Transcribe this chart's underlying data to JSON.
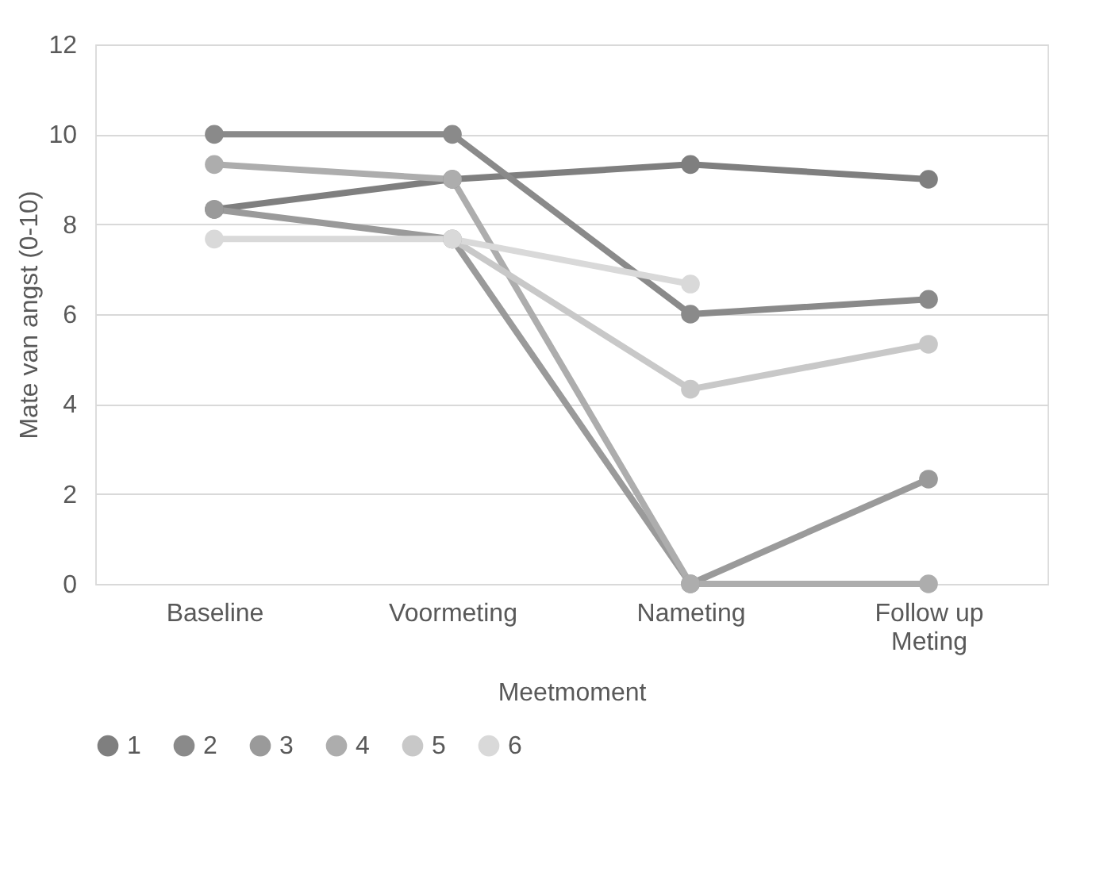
{
  "chart_data": {
    "type": "line",
    "xlabel": "Meetmoment",
    "ylabel": "Mate van angst (0-10)",
    "categories": [
      "Baseline",
      "Voormeting",
      "Nameting",
      "Follow up Meting"
    ],
    "ylim": [
      0,
      12
    ],
    "yticks": [
      0,
      2,
      4,
      6,
      8,
      10,
      12
    ],
    "grid": "y",
    "legend": "bottom",
    "marker": "circle",
    "line_style": "solid",
    "series": [
      {
        "name": "1",
        "color": "#7f7f7f",
        "values": [
          8.33,
          9,
          9.33,
          9
        ]
      },
      {
        "name": "2",
        "color": "#8a8a8a",
        "values": [
          10,
          10,
          6,
          6.33
        ]
      },
      {
        "name": "3",
        "color": "#9a9a9a",
        "values": [
          8.33,
          7.67,
          0,
          2.33
        ]
      },
      {
        "name": "4",
        "color": "#adadad",
        "values": [
          9.33,
          9,
          0,
          0
        ]
      },
      {
        "name": "5",
        "color": "#c8c8c8",
        "values": [
          null,
          7.67,
          4.33,
          5.33
        ]
      },
      {
        "name": "6",
        "color": "#d9d9d9",
        "values": [
          7.67,
          7.67,
          6.67,
          null
        ]
      }
    ]
  }
}
